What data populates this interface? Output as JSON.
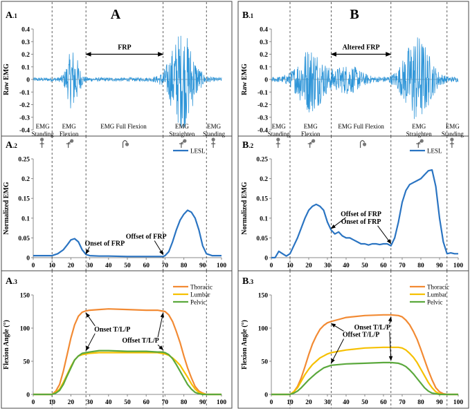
{
  "figure": {
    "columns": [
      {
        "id": "A",
        "big_label": "A"
      },
      {
        "id": "B",
        "big_label": "B"
      }
    ]
  },
  "chart_data": [
    {
      "panel_id": "A.1",
      "type": "line",
      "subtype": "raw-emg-trace",
      "panel_label": {
        "main": "A",
        "sub": ".1"
      },
      "ylabel": "Raw EMG",
      "yticks": [
        "0.4",
        "0.3",
        "0.2",
        "0.1",
        "0",
        "-0.1",
        "-0.2",
        "-0.3",
        "-0.4"
      ],
      "ylim": [
        -0.4,
        0.4
      ],
      "xlim": [
        0,
        100
      ],
      "range_label": "FRP",
      "range_x": [
        28,
        69
      ],
      "bursts": [
        {
          "center": 21,
          "width": 4,
          "amp": 0.24
        },
        {
          "center": 79,
          "width": 8,
          "amp": 0.38
        }
      ],
      "baseline_amp": 0.015,
      "dividers_x": [
        10,
        28,
        69,
        92
      ],
      "phases": [
        {
          "label1": "EMG",
          "label2": "Standing",
          "x": 5
        },
        {
          "label1": "EMG",
          "label2": "Flexion",
          "x": 19
        },
        {
          "label1": "EMG  Full Flexion",
          "label2": "",
          "x": 48
        },
        {
          "label1": "EMG",
          "label2": "Straighten",
          "x": 79
        },
        {
          "label1": "EMG",
          "label2": "Standing",
          "x": 96
        }
      ]
    },
    {
      "panel_id": "A.2",
      "type": "line",
      "panel_label": {
        "main": "A",
        "sub": ".2"
      },
      "ylabel": "Normalized EMG",
      "yticks": [
        "0.25",
        "0.2",
        "0.15",
        "0.1",
        "0.05",
        "0"
      ],
      "ylim": [
        0,
        0.25
      ],
      "xticks": [
        "0",
        "10",
        "20",
        "30",
        "40",
        "50",
        "60",
        "70",
        "80",
        "90",
        "100"
      ],
      "xlim": [
        0,
        100
      ],
      "dividers_x": [
        10,
        28,
        69,
        92
      ],
      "legend": [
        "LESL"
      ],
      "series": [
        {
          "name": "LESL",
          "color": "#2a74c2",
          "x": [
            0,
            5,
            10,
            13,
            16,
            18,
            20,
            22,
            24,
            26,
            28,
            30,
            35,
            40,
            50,
            60,
            65,
            68,
            69,
            70,
            72,
            74,
            76,
            78,
            80,
            82,
            84,
            86,
            88,
            90,
            92,
            95,
            100
          ],
          "y": [
            0.005,
            0.005,
            0.005,
            0.01,
            0.02,
            0.032,
            0.045,
            0.048,
            0.04,
            0.02,
            0.008,
            0.005,
            0.004,
            0.004,
            0.003,
            0.003,
            0.003,
            0.003,
            0.003,
            0.005,
            0.015,
            0.04,
            0.07,
            0.095,
            0.11,
            0.12,
            0.115,
            0.1,
            0.07,
            0.03,
            0.01,
            0.005,
            0.005
          ]
        }
      ],
      "annotations": [
        {
          "text": "Onset of FRP",
          "target_x": 28,
          "target_y": 0.006
        },
        {
          "text": "Offset of FRP",
          "target_x": 69,
          "target_y": 0.004
        }
      ]
    },
    {
      "panel_id": "A.3",
      "type": "line",
      "panel_label": {
        "main": "A",
        "sub": ".3"
      },
      "ylabel": "Flexion Angle (°)",
      "yticks": [
        "150",
        "100",
        "50",
        "0"
      ],
      "ylim": [
        0,
        150
      ],
      "xticks": [
        "0",
        "10",
        "20",
        "30",
        "40",
        "50",
        "60",
        "70",
        "80",
        "90",
        "100"
      ],
      "xlim": [
        0,
        100
      ],
      "dividers_x": [
        10,
        28,
        69,
        92
      ],
      "legend": [
        "Thoracic",
        "Lumbar",
        "Pelvic"
      ],
      "series": [
        {
          "name": "Thoracic",
          "color": "#f28a33",
          "x": [
            0,
            10,
            12,
            14,
            16,
            18,
            20,
            22,
            24,
            26,
            28,
            30,
            35,
            40,
            50,
            60,
            66,
            68,
            70,
            72,
            74,
            76,
            78,
            80,
            82,
            84,
            86,
            88,
            90,
            92,
            100
          ],
          "y": [
            0,
            0,
            5,
            15,
            35,
            60,
            85,
            105,
            118,
            124,
            126,
            127,
            128,
            129,
            128,
            127,
            127,
            126,
            125,
            120,
            110,
            95,
            78,
            58,
            40,
            25,
            12,
            5,
            2,
            0,
            0
          ]
        },
        {
          "name": "Lumbar",
          "color": "#f6c000",
          "x": [
            0,
            10,
            12,
            14,
            16,
            18,
            20,
            22,
            24,
            26,
            28,
            30,
            35,
            40,
            50,
            60,
            66,
            68,
            70,
            72,
            74,
            76,
            78,
            80,
            82,
            84,
            86,
            88,
            90,
            92,
            100
          ],
          "y": [
            0,
            0,
            3,
            8,
            18,
            30,
            42,
            52,
            58,
            60,
            61,
            62,
            63,
            63,
            63,
            63,
            63,
            62,
            61,
            59,
            55,
            50,
            44,
            35,
            26,
            16,
            8,
            3,
            1,
            0,
            0
          ]
        },
        {
          "name": "Pelvic",
          "color": "#5aa83c",
          "x": [
            0,
            10,
            12,
            14,
            16,
            18,
            20,
            22,
            24,
            26,
            28,
            30,
            35,
            40,
            50,
            60,
            66,
            68,
            70,
            72,
            74,
            76,
            78,
            80,
            82,
            84,
            86,
            88,
            90,
            92,
            100
          ],
          "y": [
            0,
            0,
            2,
            6,
            15,
            28,
            40,
            52,
            58,
            62,
            63,
            64,
            66,
            66,
            65,
            65,
            64,
            64,
            63,
            60,
            54,
            45,
            35,
            25,
            15,
            8,
            3,
            1,
            0,
            0,
            0
          ]
        }
      ],
      "annotations": [
        {
          "text": "Onset T/L/P",
          "target_x": 28
        },
        {
          "text": "Offset T/L/P",
          "target_x": 69
        }
      ]
    },
    {
      "panel_id": "B.1",
      "type": "line",
      "subtype": "raw-emg-trace",
      "panel_label": {
        "main": "B",
        "sub": ".1"
      },
      "ylabel": "Raw EMG",
      "yticks": [
        "0.4",
        "0.3",
        "0.2",
        "0.1",
        "0",
        "-0.1",
        "-0.2",
        "-0.3",
        "-0.4"
      ],
      "ylim": [
        -0.4,
        0.4
      ],
      "xlim": [
        0,
        100
      ],
      "range_label": "Altered FRP",
      "range_x": [
        32,
        64
      ],
      "bursts": [
        {
          "center": 21,
          "width": 9,
          "amp": 0.25
        },
        {
          "center": 41,
          "width": 9,
          "amp": 0.1
        },
        {
          "center": 78,
          "width": 9,
          "amp": 0.34
        }
      ],
      "baseline_amp": 0.02,
      "dividers_x": [
        10,
        32,
        64,
        94
      ],
      "phases": [
        {
          "label1": "EMG",
          "label2": "Standing",
          "x": 4
        },
        {
          "label1": "EMG",
          "label2": "Flexion",
          "x": 21
        },
        {
          "label1": "EMG  Full Flexion",
          "label2": "",
          "x": 48
        },
        {
          "label1": "EMG",
          "label2": "Straighten",
          "x": 79
        },
        {
          "label1": "EMG",
          "label2": "Standing",
          "x": 97
        }
      ]
    },
    {
      "panel_id": "B.2",
      "type": "line",
      "panel_label": {
        "main": "B",
        "sub": ".2"
      },
      "ylabel": "Normalized EMG",
      "yticks": [
        "0.25",
        "0.2",
        "0.15",
        "0.1",
        "0.05",
        "0"
      ],
      "ylim": [
        0,
        0.25
      ],
      "xticks": [
        "0",
        "10",
        "20",
        "30",
        "40",
        "50",
        "60",
        "70",
        "80",
        "90",
        "100"
      ],
      "xlim": [
        0,
        100
      ],
      "dividers_x": [
        10,
        32,
        64,
        94
      ],
      "legend": [
        "LESL"
      ],
      "series": [
        {
          "name": "LESL",
          "color": "#2a74c2",
          "x": [
            0,
            2,
            4,
            6,
            8,
            10,
            12,
            14,
            16,
            18,
            20,
            22,
            24,
            26,
            28,
            30,
            32,
            34,
            36,
            38,
            40,
            42,
            44,
            46,
            48,
            50,
            52,
            54,
            56,
            58,
            60,
            62,
            64,
            66,
            68,
            70,
            72,
            74,
            76,
            78,
            80,
            82,
            84,
            86,
            88,
            90,
            92,
            94,
            96,
            98,
            100
          ],
          "y": [
            0,
            0,
            0.016,
            0.01,
            0.004,
            0.01,
            0.03,
            0.05,
            0.075,
            0.1,
            0.12,
            0.13,
            0.135,
            0.13,
            0.12,
            0.09,
            0.07,
            0.06,
            0.065,
            0.055,
            0.05,
            0.05,
            0.045,
            0.04,
            0.035,
            0.035,
            0.032,
            0.035,
            0.035,
            0.033,
            0.035,
            0.035,
            0.03,
            0.05,
            0.09,
            0.14,
            0.17,
            0.185,
            0.19,
            0.195,
            0.2,
            0.21,
            0.22,
            0.222,
            0.18,
            0.1,
            0.04,
            0.01,
            0.012,
            0.01,
            0.01
          ]
        }
      ],
      "annotations": [
        {
          "text": "Offset of FRP",
          "target_x": 32,
          "target_y": 0.07
        },
        {
          "text": "Onset of FRP",
          "target_x": 64,
          "target_y": 0.032
        }
      ]
    },
    {
      "panel_id": "B.3",
      "type": "line",
      "panel_label": {
        "main": "B",
        "sub": ".3"
      },
      "ylabel": "Flexion Angle (°)",
      "yticks": [
        "150",
        "100",
        "50",
        "0"
      ],
      "ylim": [
        0,
        150
      ],
      "xticks": [
        "0",
        "10",
        "20",
        "30",
        "40",
        "50",
        "60",
        "70",
        "80",
        "90",
        "100"
      ],
      "xlim": [
        0,
        100
      ],
      "dividers_x": [
        10,
        32,
        64,
        94
      ],
      "legend": [
        "Thoracic",
        "Lumbar",
        "Pelvic"
      ],
      "series": [
        {
          "name": "Thoracic",
          "color": "#f28a33",
          "x": [
            0,
            10,
            12,
            14,
            16,
            18,
            20,
            22,
            24,
            26,
            28,
            30,
            32,
            36,
            40,
            50,
            60,
            64,
            68,
            70,
            72,
            74,
            76,
            78,
            80,
            82,
            84,
            86,
            88,
            90,
            92,
            94,
            100
          ],
          "y": [
            0,
            0,
            4,
            12,
            25,
            42,
            60,
            76,
            88,
            98,
            104,
            108,
            110,
            113,
            116,
            119,
            120,
            120,
            119,
            117,
            112,
            105,
            95,
            83,
            68,
            52,
            36,
            22,
            10,
            4,
            1,
            0,
            0
          ]
        },
        {
          "name": "Lumbar",
          "color": "#f6c000",
          "x": [
            0,
            10,
            12,
            14,
            16,
            18,
            20,
            22,
            24,
            26,
            28,
            30,
            32,
            36,
            40,
            50,
            60,
            64,
            68,
            70,
            72,
            74,
            76,
            78,
            80,
            82,
            84,
            86,
            88,
            90,
            92,
            94,
            100
          ],
          "y": [
            0,
            0,
            4,
            10,
            20,
            30,
            38,
            45,
            50,
            55,
            58,
            61,
            63,
            65,
            67,
            70,
            71,
            71,
            71,
            70,
            67,
            62,
            56,
            48,
            38,
            28,
            18,
            10,
            4,
            1,
            0,
            0,
            0
          ]
        },
        {
          "name": "Pelvic",
          "color": "#5aa83c",
          "x": [
            0,
            10,
            12,
            14,
            16,
            18,
            20,
            22,
            24,
            26,
            28,
            30,
            32,
            36,
            40,
            50,
            60,
            64,
            68,
            70,
            72,
            74,
            76,
            78,
            80,
            82,
            84,
            86,
            88,
            90,
            92,
            94,
            100
          ],
          "y": [
            0,
            0,
            2,
            5,
            10,
            16,
            22,
            27,
            32,
            36,
            40,
            42,
            44,
            45,
            46,
            47,
            48,
            48,
            47,
            45,
            42,
            37,
            31,
            24,
            17,
            10,
            5,
            2,
            1,
            0,
            0,
            0,
            0
          ]
        }
      ],
      "annotations": [
        {
          "text": "Offset T/L/P",
          "target_x": 32
        },
        {
          "text": "Onset T/L/P",
          "target_x": 64
        }
      ]
    }
  ]
}
